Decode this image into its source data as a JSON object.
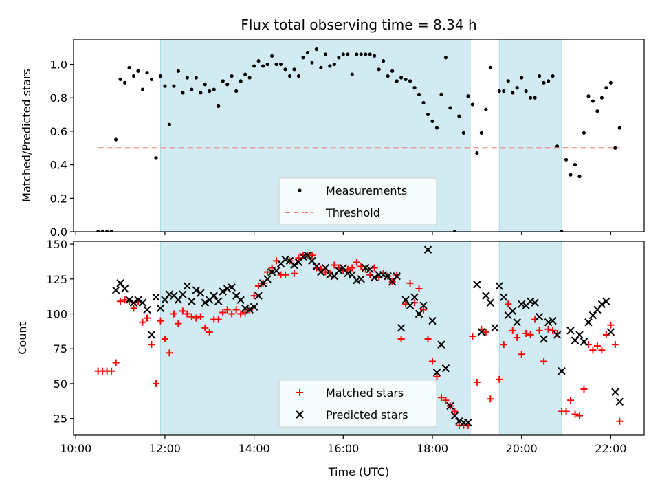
{
  "chart_data": {
    "title": "Flux total observing time = 8.34 h",
    "xlabel": "Time (UTC)",
    "xlim_hours": [
      9.95,
      22.75
    ],
    "x_ticks": [
      {
        "value": 10,
        "label": "10:00"
      },
      {
        "value": 12,
        "label": "12:00"
      },
      {
        "value": 14,
        "label": "14:00"
      },
      {
        "value": 16,
        "label": "16:00"
      },
      {
        "value": 18,
        "label": "18:00"
      },
      {
        "value": 20,
        "label": "20:00"
      },
      {
        "value": 22,
        "label": "22:00"
      }
    ],
    "shaded_intervals": [
      [
        11.9,
        18.85
      ],
      [
        19.5,
        20.9
      ]
    ],
    "colors": {
      "shade": "#add8e6",
      "threshold": "#f08080",
      "matched": "#ff0000",
      "predicted": "#000000",
      "measurements": "#000000"
    },
    "panels": [
      {
        "type": "scatter",
        "ylabel": "Matched/Predicted stars",
        "ylim": [
          0,
          1.15
        ],
        "y_ticks": [
          {
            "value": 0.0,
            "label": "0.0"
          },
          {
            "value": 0.2,
            "label": "0.2"
          },
          {
            "value": 0.4,
            "label": "0.4"
          },
          {
            "value": 0.6,
            "label": "0.6"
          },
          {
            "value": 0.8,
            "label": "0.8"
          },
          {
            "value": 1.0,
            "label": "1.0"
          }
        ],
        "legend": {
          "placement": "lower-center",
          "entries": [
            "Measurements",
            "Threshold"
          ]
        },
        "series": [
          {
            "name": "Measurements",
            "marker": "dot",
            "x": [
              10.5,
              10.6,
              10.7,
              10.8,
              10.9,
              11.0,
              11.1,
              11.2,
              11.3,
              11.4,
              11.5,
              11.6,
              11.7,
              11.8,
              11.9,
              12.0,
              12.1,
              12.2,
              12.3,
              12.4,
              12.5,
              12.6,
              12.7,
              12.8,
              12.9,
              13.0,
              13.1,
              13.2,
              13.3,
              13.4,
              13.5,
              13.6,
              13.7,
              13.8,
              13.9,
              14.0,
              14.1,
              14.2,
              14.3,
              14.4,
              14.5,
              14.6,
              14.7,
              14.8,
              14.9,
              15.0,
              15.1,
              15.2,
              15.3,
              15.4,
              15.5,
              15.6,
              15.7,
              15.8,
              15.9,
              16.0,
              16.1,
              16.2,
              16.3,
              16.4,
              16.5,
              16.6,
              16.7,
              16.8,
              16.9,
              17.0,
              17.1,
              17.2,
              17.3,
              17.4,
              17.5,
              17.6,
              17.7,
              17.8,
              17.9,
              18.0,
              18.1,
              18.2,
              18.3,
              18.4,
              18.5,
              18.6,
              18.7,
              18.8,
              18.9,
              19.0,
              19.1,
              19.2,
              19.3,
              19.5,
              19.6,
              19.7,
              19.8,
              19.9,
              20.0,
              20.1,
              20.2,
              20.3,
              20.4,
              20.5,
              20.6,
              20.7,
              20.8,
              20.9,
              21.0,
              21.1,
              21.2,
              21.3,
              21.4,
              21.5,
              21.6,
              21.7,
              21.8,
              21.9,
              22.0,
              22.1,
              22.2
            ],
            "y": [
              0.0,
              0.0,
              0.0,
              0.0,
              0.55,
              0.91,
              0.89,
              0.98,
              0.93,
              0.96,
              0.85,
              0.95,
              0.91,
              0.44,
              0.93,
              0.87,
              0.64,
              0.87,
              0.96,
              0.83,
              0.92,
              0.85,
              0.92,
              0.83,
              0.88,
              0.84,
              0.85,
              0.75,
              0.9,
              0.88,
              0.93,
              0.84,
              0.9,
              0.94,
              0.92,
              0.99,
              1.02,
              0.99,
              1.0,
              1.05,
              1.0,
              1.0,
              0.97,
              0.93,
              0.97,
              0.93,
              1.04,
              1.07,
              1.01,
              1.09,
              0.98,
              1.06,
              0.99,
              1.0,
              1.04,
              1.06,
              1.06,
              0.94,
              1.06,
              1.06,
              1.06,
              1.06,
              1.05,
              0.97,
              1.02,
              0.93,
              0.96,
              0.9,
              0.92,
              0.91,
              0.9,
              0.86,
              0.82,
              0.77,
              0.7,
              0.66,
              0.62,
              0.82,
              1.04,
              0.74,
              0.0,
              0.69,
              0.59,
              0.81,
              0.76,
              0.47,
              0.59,
              0.73,
              0.98,
              0.84,
              0.84,
              0.9,
              0.83,
              0.86,
              0.92,
              0.84,
              0.8,
              0.8,
              0.93,
              0.89,
              0.9,
              0.93,
              0.51,
              0.0,
              0.43,
              0.34,
              0.4,
              0.33,
              0.59,
              0.81,
              0.78,
              0.72,
              0.8,
              0.86,
              0.89,
              0.5,
              0.62
            ]
          },
          {
            "name": "Threshold",
            "type": "line",
            "style": "dashed",
            "x": [
              10.5,
              22.2
            ],
            "y": [
              0.5,
              0.5
            ]
          }
        ]
      },
      {
        "type": "scatter",
        "ylabel": "Count",
        "ylim": [
          13,
          152
        ],
        "y_ticks": [
          {
            "value": 25,
            "label": "25"
          },
          {
            "value": 50,
            "label": "50"
          },
          {
            "value": 75,
            "label": "75"
          },
          {
            "value": 100,
            "label": "100"
          },
          {
            "value": 125,
            "label": "125"
          },
          {
            "value": 150,
            "label": "150"
          }
        ],
        "legend": {
          "placement": "lower-center",
          "entries": [
            "Matched stars",
            "Predicted stars"
          ]
        },
        "series": [
          {
            "name": "Matched stars",
            "marker": "plus",
            "x": [
              10.5,
              10.6,
              10.7,
              10.8,
              10.9,
              11.0,
              11.1,
              11.2,
              11.3,
              11.4,
              11.5,
              11.6,
              11.7,
              11.8,
              11.9,
              12.0,
              12.1,
              12.2,
              12.3,
              12.4,
              12.5,
              12.6,
              12.7,
              12.8,
              12.9,
              13.0,
              13.1,
              13.2,
              13.3,
              13.4,
              13.5,
              13.6,
              13.7,
              13.8,
              13.9,
              14.0,
              14.1,
              14.2,
              14.3,
              14.4,
              14.5,
              14.6,
              14.7,
              14.8,
              14.9,
              15.0,
              15.1,
              15.2,
              15.3,
              15.4,
              15.5,
              15.6,
              15.7,
              15.8,
              15.9,
              16.0,
              16.1,
              16.2,
              16.3,
              16.4,
              16.5,
              16.6,
              16.7,
              16.8,
              16.9,
              17.0,
              17.1,
              17.2,
              17.3,
              17.4,
              17.5,
              17.6,
              17.7,
              17.8,
              17.9,
              18.0,
              18.1,
              18.2,
              18.3,
              18.4,
              18.5,
              18.6,
              18.7,
              18.8,
              18.9,
              19.0,
              19.1,
              19.2,
              19.3,
              19.5,
              19.6,
              19.7,
              19.8,
              19.9,
              20.0,
              20.1,
              20.2,
              20.3,
              20.4,
              20.5,
              20.6,
              20.7,
              20.8,
              20.9,
              21.0,
              21.1,
              21.2,
              21.3,
              21.4,
              21.5,
              21.6,
              21.7,
              21.8,
              21.9,
              22.0,
              22.1,
              22.2
            ],
            "y": [
              59,
              59,
              59,
              59,
              65,
              109,
              110,
              109,
              104,
              109,
              94,
              97,
              78,
              50,
              95,
              82,
              72,
              100,
              93,
              102,
              100,
              98,
              97,
              98,
              90,
              87,
              96,
              96,
              101,
              103,
              100,
              103,
              100,
              101,
              103,
              113,
              120,
              122,
              130,
              133,
              138,
              128,
              128,
              138,
              129,
              140,
              142,
              142,
              142,
              133,
              132,
              130,
              129,
              135,
              133,
              131,
              132,
              133,
              137,
              134,
              132,
              128,
              133,
              126,
              129,
              127,
              123,
              128,
              82,
              107,
              122,
              108,
              118,
              103,
              82,
              66,
              55,
              40,
              38,
              34,
              30,
              20,
              20,
              20,
              84,
              51,
              89,
              87,
              39,
              53,
              78,
              107,
              88,
              83,
              71,
              86,
              85,
              96,
              88,
              66,
              89,
              88,
              86,
              30,
              30,
              38,
              28,
              27,
              46,
              78,
              74,
              77,
              74,
              85,
              92,
              78,
              23
            ]
          },
          {
            "name": "Predicted stars",
            "marker": "x",
            "x": [
              10.9,
              11.0,
              11.1,
              11.2,
              11.3,
              11.4,
              11.5,
              11.6,
              11.7,
              11.8,
              11.9,
              12.0,
              12.1,
              12.2,
              12.3,
              12.4,
              12.5,
              12.6,
              12.7,
              12.8,
              12.9,
              13.0,
              13.1,
              13.2,
              13.3,
              13.4,
              13.5,
              13.6,
              13.7,
              13.8,
              13.9,
              14.0,
              14.1,
              14.2,
              14.3,
              14.4,
              14.5,
              14.6,
              14.7,
              14.8,
              14.9,
              15.0,
              15.1,
              15.2,
              15.3,
              15.4,
              15.5,
              15.6,
              15.7,
              15.8,
              15.9,
              16.0,
              16.1,
              16.2,
              16.3,
              16.4,
              16.5,
              16.6,
              16.7,
              16.8,
              16.9,
              17.0,
              17.1,
              17.2,
              17.3,
              17.4,
              17.5,
              17.6,
              17.7,
              17.8,
              17.9,
              18.0,
              18.1,
              18.2,
              18.3,
              18.4,
              18.5,
              18.6,
              18.7,
              18.8,
              19.0,
              19.1,
              19.2,
              19.3,
              19.4,
              19.5,
              19.6,
              19.7,
              19.8,
              19.9,
              20.0,
              20.1,
              20.2,
              20.3,
              20.4,
              20.5,
              20.6,
              20.7,
              20.8,
              20.9,
              21.1,
              21.2,
              21.3,
              21.4,
              21.5,
              21.6,
              21.7,
              21.8,
              21.9,
              22.0,
              22.1,
              22.2
            ],
            "y": [
              117,
              122,
              118,
              110,
              108,
              110,
              108,
              103,
              85,
              112,
              104,
              110,
              114,
              113,
              110,
              114,
              120,
              109,
              117,
              115,
              108,
              110,
              113,
              109,
              116,
              118,
              119,
              113,
              110,
              104,
              103,
              105,
              113,
              122,
              125,
              130,
              131,
              136,
              139,
              138,
              135,
              137,
              141,
              142,
              138,
              134,
              130,
              133,
              128,
              127,
              131,
              133,
              129,
              128,
              124,
              125,
              133,
              132,
              126,
              128,
              128,
              127,
              123,
              127,
              90,
              110,
              106,
              112,
              100,
              106,
              146,
              95,
              58,
              78,
              61,
              34,
              27,
              23,
              22,
              22,
              121,
              87,
              113,
              108,
              90,
              120,
              112,
              99,
              102,
              94,
              107,
              106,
              109,
              108,
              98,
              82,
              94,
              95,
              85,
              59,
              88,
              81,
              85,
              80,
              94,
              99,
              103,
              107,
              109,
              87,
              44,
              37
            ]
          }
        ]
      }
    ]
  }
}
